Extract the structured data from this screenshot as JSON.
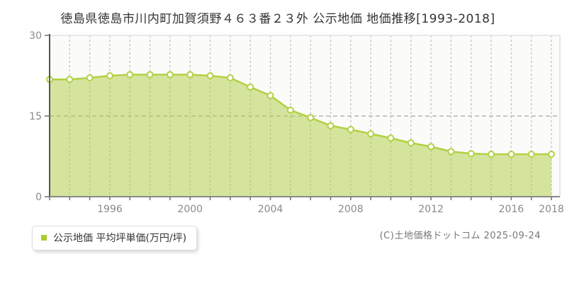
{
  "header": {
    "title": "徳島県徳島市川内町加賀須野４６３番２３外 公示地価 地価推移[1993-2018]"
  },
  "chart_data": {
    "type": "area",
    "title": "徳島県徳島市川内町加賀須野４６３番２３外 公示地価 地価推移[1993-2018]",
    "x": [
      1993,
      1994,
      1995,
      1996,
      1997,
      1998,
      1999,
      2000,
      2001,
      2002,
      2003,
      2004,
      2005,
      2006,
      2007,
      2008,
      2009,
      2010,
      2011,
      2012,
      2013,
      2014,
      2015,
      2016,
      2017,
      2018
    ],
    "values": [
      21.8,
      21.8,
      22.1,
      22.5,
      22.7,
      22.7,
      22.7,
      22.7,
      22.5,
      22.1,
      20.4,
      18.8,
      16.1,
      14.7,
      13.2,
      12.5,
      11.7,
      10.9,
      10.0,
      9.3,
      8.4,
      8.0,
      7.9,
      7.9,
      7.9,
      7.9
    ],
    "xlabel": "",
    "ylabel": "",
    "ylim": [
      0,
      30
    ],
    "y_ticks": [
      0,
      15,
      30
    ],
    "x_tick_labels": [
      "1996",
      "2000",
      "2004",
      "2008",
      "2012",
      "2016",
      "2018"
    ],
    "legend_entries": [
      "公示地価 平均坪単価(万円/坪)"
    ],
    "legend_position": "bottom-left",
    "grid": "dashed vertical per year; dashed horizontal at 15",
    "unit": "万円/坪",
    "colors": {
      "line": "#b2d145",
      "fill": "rgba(176,206,62,0.5)",
      "marker_fill": "#ffffff",
      "marker_stroke": "#b2d145",
      "grid": "#c7c7c7",
      "midline": "#b3b3b3",
      "plot_border": "#e2e2e2",
      "plot_bg": "#fbfbfa",
      "y_axis": "#555555",
      "x_axis": "#888888",
      "tick": "#777777",
      "tick_label": "#8a8a8a",
      "title": "#333333",
      "legend_swatch": "#a9cc33"
    }
  },
  "legend": {
    "label": "公示地価 平均坪単価(万円/坪)"
  },
  "footer": {
    "copyright": "(C)土地価格ドットコム 2025-09-24"
  }
}
